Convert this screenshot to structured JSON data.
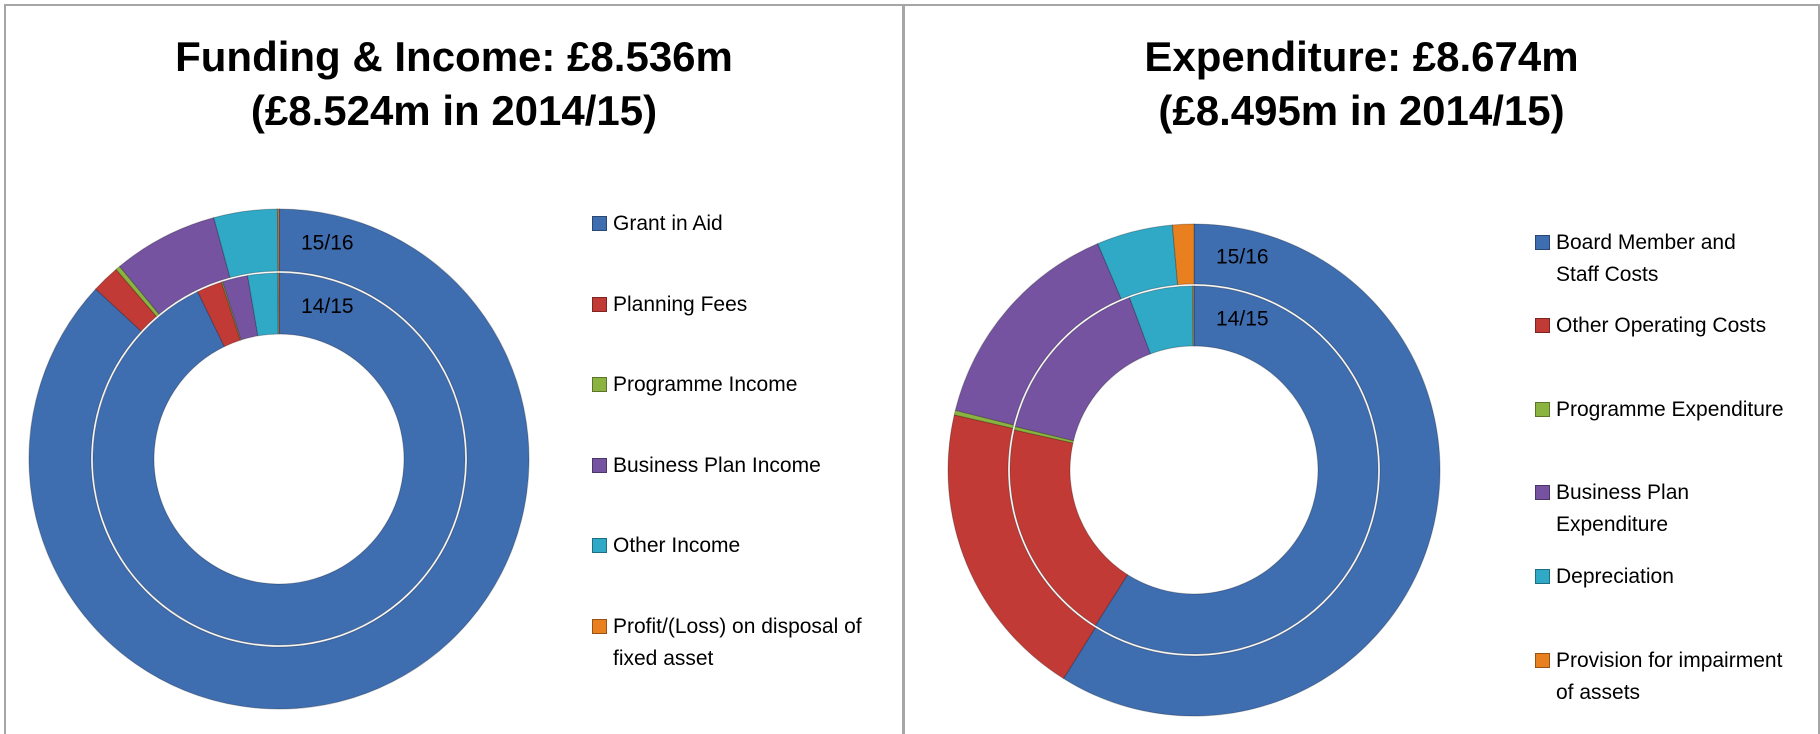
{
  "chart_data": [
    {
      "type": "donut",
      "title": "Funding & Income: £8.536m",
      "subtitle": "(£8.524m in 2014/15)",
      "categories": [
        "Grant in Aid",
        "Planning Fees",
        "Programme Income",
        "Business Plan Income",
        "Other Income",
        "Profit/(Loss) on disposal of fixed asset"
      ],
      "colors": [
        "#3e6db0",
        "#c23a35",
        "#8ab43f",
        "#7553a0",
        "#2fa9c6",
        "#e9801f"
      ],
      "series": [
        {
          "name": "15/16",
          "values": [
            86.9,
            1.8,
            0.3,
            6.8,
            4.1,
            0.1
          ]
        },
        {
          "name": "14/15",
          "values": [
            92.8,
            2.2,
            0.1,
            2.2,
            2.6,
            0.1
          ]
        }
      ]
    },
    {
      "type": "donut",
      "title": "Expenditure: £8.674m",
      "subtitle": "(£8.495m in 2014/15)",
      "categories": [
        "Board Member and Staff Costs",
        "Other Operating Costs",
        "Programme Expenditure",
        "Business Plan Expenditure",
        "Depreciation",
        "Provision for impairment of assets"
      ],
      "colors": [
        "#3e6db0",
        "#c23a35",
        "#8ab43f",
        "#7553a0",
        "#2fa9c6",
        "#e9801f"
      ],
      "series": [
        {
          "name": "15/16",
          "values": [
            58.9,
            19.7,
            0.3,
            14.7,
            5.0,
            1.4
          ]
        },
        {
          "name": "14/15",
          "values": [
            59.0,
            19.5,
            0.3,
            15.5,
            5.6,
            0.1
          ]
        }
      ]
    }
  ]
}
